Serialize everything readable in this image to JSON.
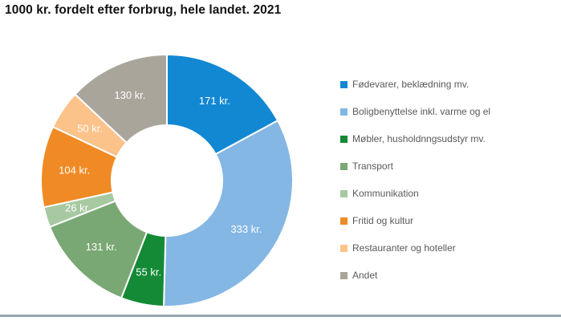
{
  "header": {
    "title": "1000 kr. fordelt efter forbrug, hele landet. 2021"
  },
  "chart_data": {
    "type": "pie",
    "subtype": "donut",
    "title": "1000 kr. fordelt efter forbrug, hele landet. 2021",
    "unit": "kr.",
    "total": 1000,
    "start_angle_deg": 0,
    "direction": "clockwise",
    "legend_position": "right",
    "categories": [
      "Fødevarer, beklædning mv.",
      "Boligbenyttelse inkl. varme og el",
      "Møbler, husholdnngsudstyr mv.",
      "Transport",
      "Kommunikation",
      "Fritid og kultur",
      "Restauranter og hoteller",
      "Andet"
    ],
    "values": [
      171,
      333,
      55,
      131,
      26,
      104,
      50,
      130
    ],
    "labels": [
      "171 kr.",
      "333 kr.",
      "55 kr.",
      "131 kr.",
      "26 kr.",
      "104 kr.",
      "50 kr.",
      "130 kr."
    ],
    "colors": [
      "#1288d2",
      "#85b7e4",
      "#148a36",
      "#7aa874",
      "#a7c9a1",
      "#f08a24",
      "#fbc28a",
      "#a9a59b"
    ],
    "label_color": "#ffffff"
  },
  "divider": {
    "color": "#93a5ae"
  }
}
